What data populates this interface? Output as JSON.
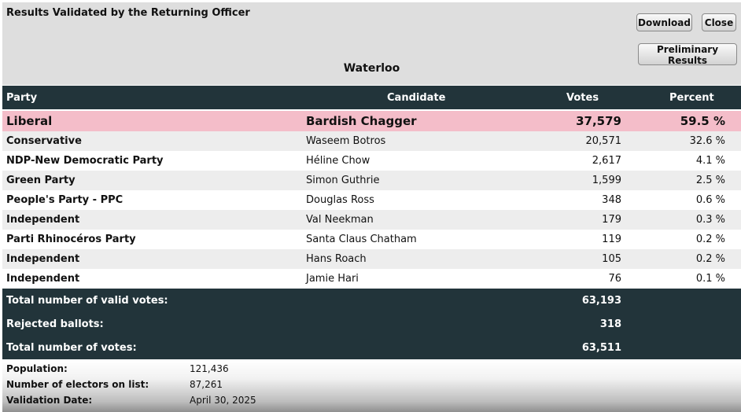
{
  "header": {
    "title": "Results Validated by the Returning Officer",
    "riding": "Waterloo",
    "download_label": "Download",
    "close_label": "Close",
    "preliminary_label": "Preliminary Results"
  },
  "table": {
    "columns": {
      "party": "Party",
      "candidate": "Candidate",
      "votes": "Votes",
      "percent": "Percent"
    },
    "rows": [
      {
        "party": "Liberal",
        "candidate": "Bardish Chagger",
        "votes": "37,579",
        "percent": "59.5 %"
      },
      {
        "party": "Conservative",
        "candidate": "Waseem Botros",
        "votes": "20,571",
        "percent": "32.6 %"
      },
      {
        "party": "NDP-New Democratic Party",
        "candidate": "Héline Chow",
        "votes": "2,617",
        "percent": "4.1 %"
      },
      {
        "party": "Green Party",
        "candidate": "Simon Guthrie",
        "votes": "1,599",
        "percent": "2.5 %"
      },
      {
        "party": "People's Party - PPC",
        "candidate": "Douglas Ross",
        "votes": "348",
        "percent": "0.6 %"
      },
      {
        "party": "Independent",
        "candidate": "Val Neekman",
        "votes": "179",
        "percent": "0.3 %"
      },
      {
        "party": "Parti Rhinocéros Party",
        "candidate": "Santa Claus Chatham",
        "votes": "119",
        "percent": "0.2 %"
      },
      {
        "party": "Independent",
        "candidate": "Hans Roach",
        "votes": "105",
        "percent": "0.2 %"
      },
      {
        "party": "Independent",
        "candidate": "Jamie Hari",
        "votes": "76",
        "percent": "0.1 %"
      }
    ]
  },
  "totals": [
    {
      "label": "Total number of valid votes:",
      "value": "63,193"
    },
    {
      "label": "Rejected ballots:",
      "value": "318"
    },
    {
      "label": "Total number of votes:",
      "value": "63,511"
    }
  ],
  "footer": [
    {
      "label": "Population:",
      "value": "121,436"
    },
    {
      "label": "Number of electors on list:",
      "value": "87,261"
    },
    {
      "label": "Validation Date:",
      "value": "April 30, 2025"
    }
  ],
  "colors": {
    "header_bg": "#dedede",
    "dark_bar": "#22343a",
    "winner_row": "#f4bdc9",
    "stripe": "#ededed"
  }
}
